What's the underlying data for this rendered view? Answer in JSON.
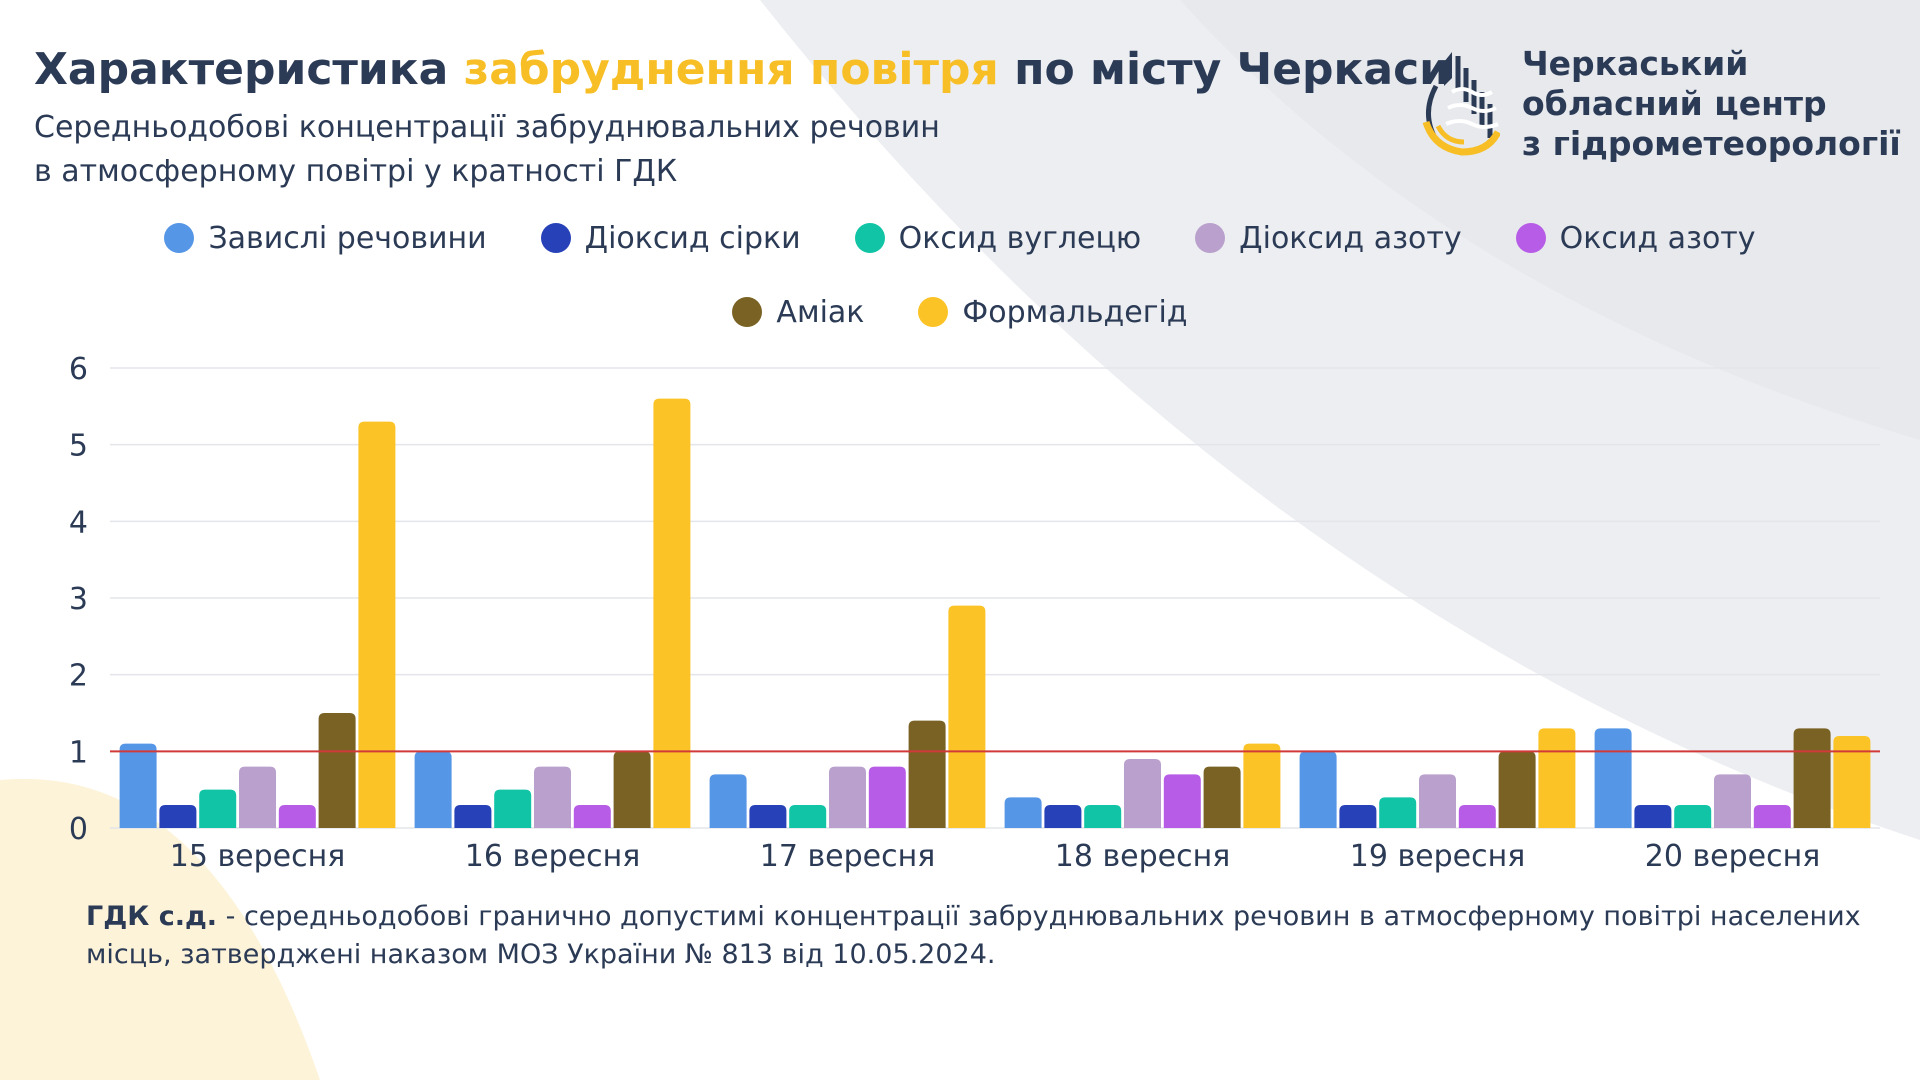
{
  "header": {
    "title_part1": "Характеристика ",
    "title_highlight": "забруднення повітря",
    "title_part2": " по місту Черкаси",
    "subtitle_line1": "Середньодобові концентрації забруднювальних речовин",
    "subtitle_line2": "в атмосферному повітрі у кратності ГДК"
  },
  "logo": {
    "line1": "Черкаський",
    "line2": "обласний центр",
    "line3": "з гідрометеорології"
  },
  "colors": {
    "text": "#2b3a55",
    "accent": "#f7bf25",
    "limit_line": "#d23a3a"
  },
  "footnote": {
    "bold": "ГДК с.д.",
    "text": " - середньодобові гранично допустимі концентрації забруднювальних речовин в атмосферному повітрі населених місць, затверджені наказом МОЗ України № 813 від 10.05.2024."
  },
  "chart_data": {
    "type": "bar",
    "categories": [
      "15 вересня",
      "16 вересня",
      "17 вересня",
      "18 вересня",
      "19 вересня",
      "20 вересня"
    ],
    "series": [
      {
        "name": "Завислі речовини",
        "color": "#5596e6",
        "values": [
          1.1,
          1.0,
          0.7,
          0.4,
          1.0,
          1.3
        ]
      },
      {
        "name": "Діоксид сірки",
        "color": "#2741b8",
        "values": [
          0.3,
          0.3,
          0.3,
          0.3,
          0.3,
          0.3
        ]
      },
      {
        "name": "Оксид вуглецю",
        "color": "#11c4a6",
        "values": [
          0.5,
          0.5,
          0.3,
          0.3,
          0.4,
          0.3
        ]
      },
      {
        "name": "Діоксид азоту",
        "color": "#b9a0cd",
        "values": [
          0.8,
          0.8,
          0.8,
          0.9,
          0.7,
          0.7
        ]
      },
      {
        "name": "Оксид азоту",
        "color": "#b75ce6",
        "values": [
          0.3,
          0.3,
          0.8,
          0.7,
          0.3,
          0.3
        ]
      },
      {
        "name": "Аміак",
        "color": "#7a6224",
        "values": [
          1.5,
          1.0,
          1.4,
          0.8,
          1.0,
          1.3
        ]
      },
      {
        "name": "Формальдегід",
        "color": "#fbc325",
        "values": [
          5.3,
          5.6,
          2.9,
          1.1,
          1.3,
          1.2
        ]
      }
    ],
    "y_ticks": [
      "0",
      "1",
      "2",
      "3",
      "4",
      "5",
      "6"
    ],
    "ylim": [
      0,
      6
    ],
    "reference_line": 1,
    "grid": true,
    "legend_position": "top"
  }
}
